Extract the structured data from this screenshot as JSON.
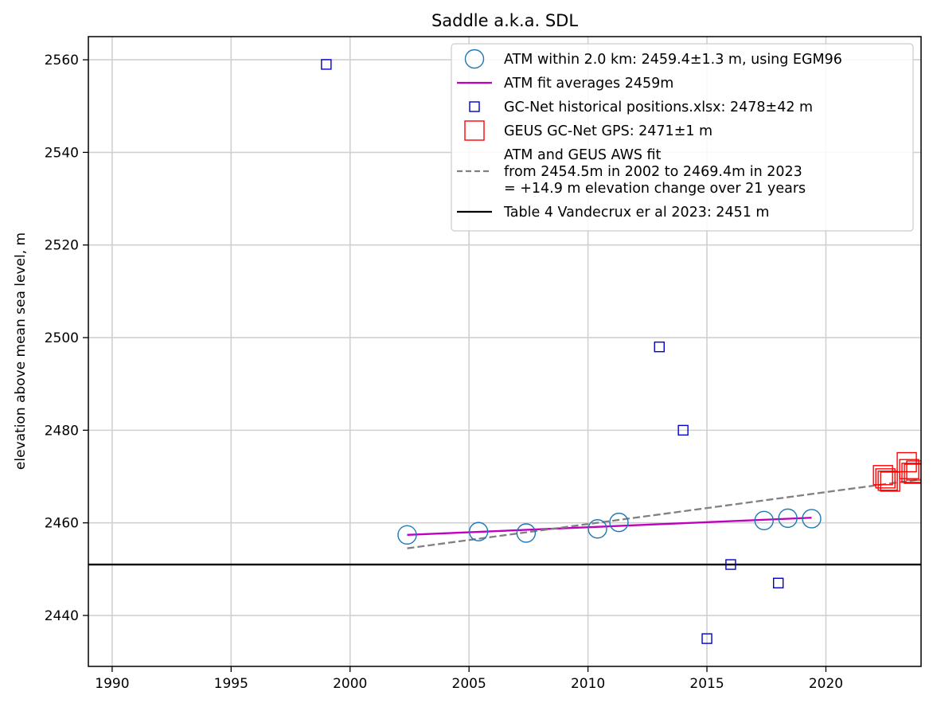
{
  "chart_data": {
    "type": "scatter",
    "title": "Saddle a.k.a. SDL",
    "xlabel": "",
    "ylabel": "elevation above mean sea level, m",
    "xlim": [
      1989,
      2024
    ],
    "ylim": [
      2429,
      2565
    ],
    "xticks": [
      1990,
      1995,
      2000,
      2005,
      2010,
      2015,
      2020
    ],
    "yticks": [
      2440,
      2460,
      2480,
      2500,
      2520,
      2540,
      2560
    ],
    "grid": true,
    "legend_position": "top-right",
    "series": [
      {
        "name": "ATM within 2.0 km: 2459.4±1.3 m, using EGM96",
        "kind": "scatter",
        "marker": "circle",
        "color": "#1f77b4",
        "x": [
          2002.4,
          2005.4,
          2007.4,
          2010.4,
          2011.3,
          2017.4,
          2018.4,
          2019.4
        ],
        "y": [
          2457.4,
          2458.1,
          2457.8,
          2458.7,
          2460.1,
          2460.5,
          2461.0,
          2460.9
        ]
      },
      {
        "name": "ATM fit averages 2459m",
        "kind": "line",
        "color": "#bf00bf",
        "dash": "solid",
        "x": [
          2002.4,
          2019.4
        ],
        "y": [
          2457.4,
          2461.1
        ]
      },
      {
        "name": "GC-Net historical positions.xlsx: 2478±42 m",
        "kind": "scatter",
        "marker": "square-small",
        "color": "#0000cc",
        "x": [
          1999,
          2013,
          2014,
          2015,
          2016,
          2018
        ],
        "y": [
          2559,
          2498,
          2480,
          2435,
          2451,
          2447
        ]
      },
      {
        "name": "GEUS GC-Net GPS: 2471±1 m",
        "kind": "scatter",
        "marker": "square-large",
        "color": "#ff0000",
        "x": [
          2022.4,
          2022.5,
          2022.6,
          2022.7,
          2023.4,
          2023.5,
          2023.6,
          2023.7,
          2023.8
        ],
        "y": [
          2470.3,
          2469.6,
          2469.1,
          2468.9,
          2473.1,
          2471.6,
          2470.8,
          2470.6,
          2471.3
        ]
      },
      {
        "name": "ATM and GEUS AWS fit\nfrom 2454.5m in 2002 to 2469.4m in 2023\n= +14.9 m elevation change over 21 years",
        "kind": "line",
        "color": "#808080",
        "dash": "dashed",
        "x": [
          2002.4,
          2024
        ],
        "y": [
          2454.5,
          2469.4
        ]
      },
      {
        "name": "Table 4 Vandecrux er al 2023: 2451 m",
        "kind": "hline",
        "color": "#000000",
        "dash": "solid",
        "y": 2451
      }
    ]
  }
}
